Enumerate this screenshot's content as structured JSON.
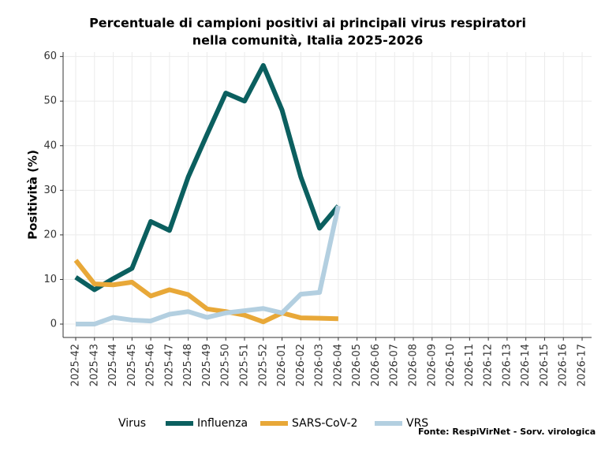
{
  "chart_data": {
    "type": "line",
    "title": [
      "Percentuale di campioni positivi ai principali virus respiratori",
      "nella comunità, Italia 2025-2026"
    ],
    "y_label": "Positività (%)",
    "legend_title": "Virus",
    "annotation": "Fonte: RespiVirNet - Sorv. virologica",
    "categories": [
      "2025-42",
      "2025-43",
      "2025-44",
      "2025-45",
      "2025-46",
      "2025-47",
      "2025-48",
      "2025-49",
      "2025-50",
      "2025-51",
      "2025-52",
      "2026-01",
      "2026-02",
      "2026-03",
      "2026-04",
      "2026-05",
      "2026-06",
      "2026-07",
      "2026-08",
      "2026-09",
      "2026-10",
      "2026-11",
      "2026-12",
      "2026-13",
      "2026-14",
      "2026-15",
      "2026-16",
      "2026-17"
    ],
    "series": [
      {
        "name": "Influenza",
        "color": "#0b5f5f",
        "values": [
          10.5,
          7.7,
          10.2,
          12.5,
          23,
          21,
          33,
          42.5,
          51.8,
          50,
          58,
          48,
          33,
          21.5,
          26.5,
          null,
          null,
          null,
          null,
          null,
          null,
          null,
          null,
          null,
          null,
          null,
          null,
          null
        ]
      },
      {
        "name": "SARS-CoV-2",
        "color": "#e8a838",
        "values": [
          14.3,
          9,
          8.8,
          9.4,
          6.3,
          7.7,
          6.6,
          3.4,
          2.8,
          2,
          0.5,
          2.5,
          1.4,
          1.3,
          1.2,
          null,
          null,
          null,
          null,
          null,
          null,
          null,
          null,
          null,
          null,
          null,
          null,
          null
        ]
      },
      {
        "name": "VRS",
        "color": "#b3cfe0",
        "values": [
          0,
          0,
          1.5,
          0.9,
          0.7,
          2.2,
          2.8,
          1.5,
          2.5,
          3,
          3.5,
          2.5,
          6.7,
          7.1,
          26.5,
          null,
          null,
          null,
          null,
          null,
          null,
          null,
          null,
          null,
          null,
          null,
          null,
          null
        ]
      }
    ],
    "ylim": [
      -3,
      61
    ],
    "yticks": [
      0,
      10,
      20,
      30,
      40,
      50,
      60
    ],
    "grid": true,
    "legend": "bottom"
  }
}
